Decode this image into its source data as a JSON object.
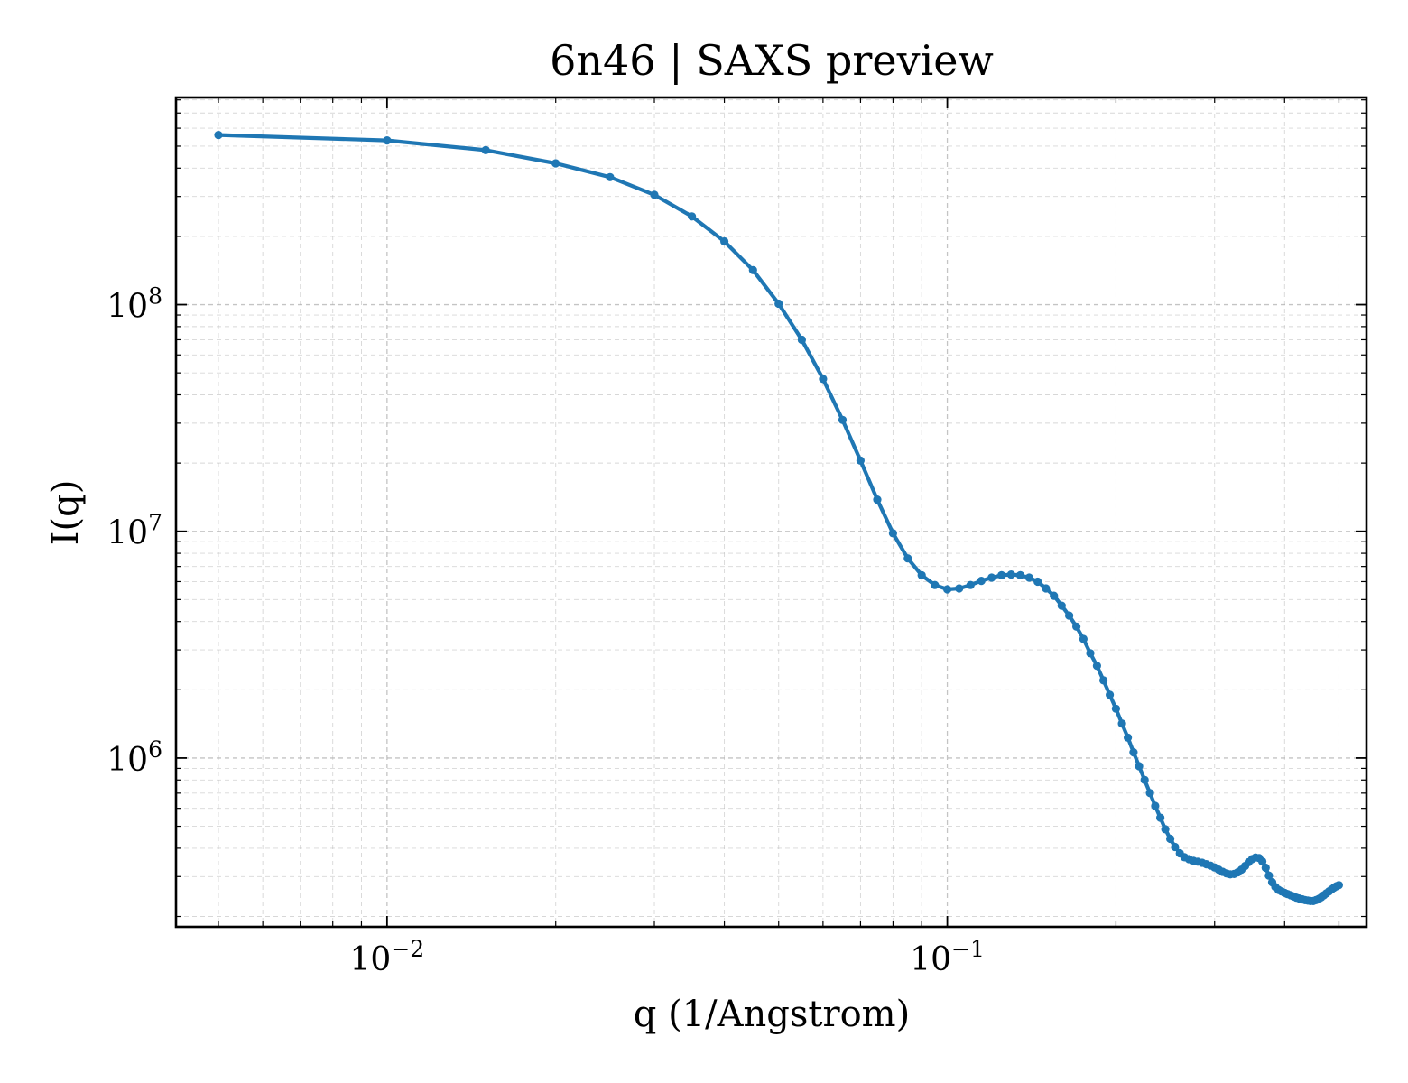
{
  "chart_data": {
    "type": "line",
    "title": "6n46 | SAXS preview",
    "xlabel": "q (1/Angstrom)",
    "ylabel": "I(q)",
    "xscale": "log",
    "yscale": "log",
    "xlim": [
      0.0042,
      0.56
    ],
    "ylim": [
      180000,
      820000000
    ],
    "grid": true,
    "legend": "none",
    "line_color": "#1f77b4",
    "x_ticks": [
      {
        "value": 0.01,
        "base": "10",
        "exp": "−2"
      },
      {
        "value": 0.1,
        "base": "10",
        "exp": "−1"
      }
    ],
    "y_ticks": [
      {
        "value": 1000000,
        "base": "10",
        "exp": "6"
      },
      {
        "value": 10000000,
        "base": "10",
        "exp": "7"
      },
      {
        "value": 100000000,
        "base": "10",
        "exp": "8"
      }
    ],
    "series": [
      {
        "x": [
          0.005,
          0.01,
          0.015,
          0.02,
          0.025,
          0.03,
          0.035,
          0.04,
          0.045,
          0.05,
          0.055,
          0.06,
          0.065,
          0.07,
          0.075,
          0.08,
          0.085,
          0.09,
          0.095,
          0.1,
          0.105,
          0.11,
          0.115,
          0.12,
          0.125,
          0.13,
          0.135,
          0.14,
          0.145,
          0.15,
          0.155,
          0.16,
          0.165,
          0.17,
          0.175,
          0.18,
          0.185,
          0.19,
          0.195,
          0.2,
          0.205,
          0.21,
          0.215,
          0.22,
          0.225,
          0.23,
          0.235,
          0.24,
          0.245,
          0.25,
          0.255,
          0.26,
          0.265,
          0.27,
          0.275,
          0.28,
          0.285,
          0.29,
          0.295,
          0.3,
          0.305,
          0.31,
          0.315,
          0.32,
          0.325,
          0.33,
          0.335,
          0.34,
          0.345,
          0.35,
          0.355,
          0.36,
          0.365,
          0.37,
          0.375,
          0.38,
          0.385,
          0.39,
          0.395,
          0.4,
          0.405,
          0.41,
          0.415,
          0.42,
          0.425,
          0.43,
          0.435,
          0.44,
          0.445,
          0.45,
          0.455,
          0.46,
          0.465,
          0.47,
          0.475,
          0.48,
          0.485,
          0.49,
          0.495,
          0.5
        ],
        "y": [
          560000000,
          530000000,
          480000000,
          420000000,
          365000000,
          305000000,
          245000000,
          190000000,
          142000000,
          101000000,
          70000000,
          47000000,
          31000000,
          20500000,
          13800000,
          9800000,
          7600000,
          6400000,
          5800000,
          5550000,
          5600000,
          5800000,
          6050000,
          6250000,
          6400000,
          6450000,
          6400000,
          6250000,
          6000000,
          5600000,
          5200000,
          4700000,
          4250000,
          3800000,
          3350000,
          2900000,
          2550000,
          2200000,
          1900000,
          1650000,
          1420000,
          1230000,
          1060000,
          920000,
          800000,
          700000,
          615000,
          545000,
          485000,
          440000,
          405000,
          380000,
          365000,
          358000,
          352000,
          349000,
          345000,
          340000,
          335000,
          329000,
          322000,
          315000,
          310000,
          307000,
          308000,
          313000,
          322000,
          334000,
          347000,
          358000,
          364000,
          362000,
          350000,
          328000,
          303000,
          283000,
          270000,
          262000,
          258000,
          254000,
          251000,
          248000,
          245000,
          242000,
          240000,
          238000,
          236000,
          235000,
          234000,
          234000,
          236000,
          239000,
          243000,
          248000,
          253000,
          258000,
          263000,
          268000,
          272000,
          275000
        ]
      }
    ]
  }
}
